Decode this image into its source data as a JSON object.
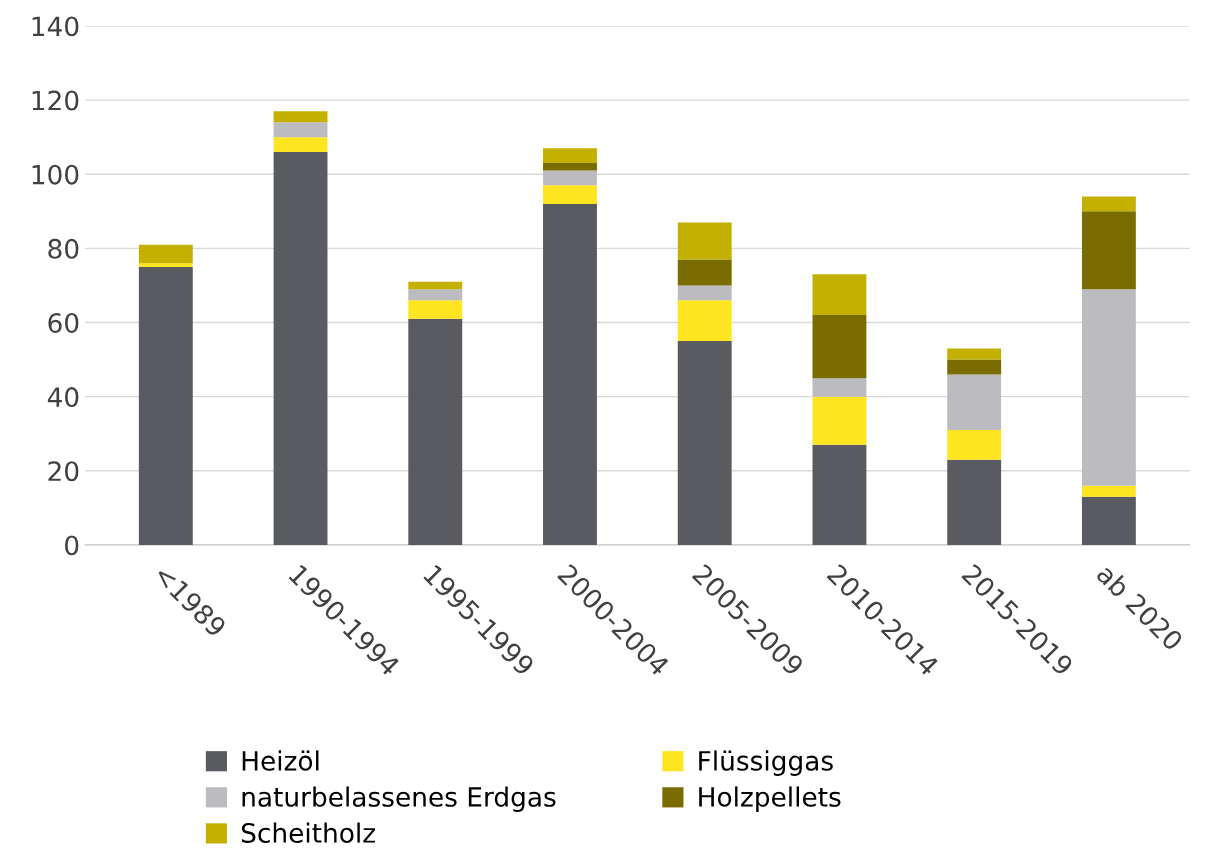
{
  "chart_data": {
    "type": "bar",
    "stacked": true,
    "categories": [
      "<1989",
      "1990-1994",
      "1995-1999",
      "2000-2004",
      "2005-2009",
      "2010-2014",
      "2015-2019",
      "ab 2020"
    ],
    "series": [
      {
        "name": "Heizöl",
        "color": "#5a5b60",
        "values": [
          75,
          106,
          61,
          92,
          55,
          27,
          23,
          13
        ]
      },
      {
        "name": "Flüssiggas",
        "color": "#ffe51f",
        "values": [
          1,
          4,
          5,
          5,
          11,
          13,
          8,
          3
        ]
      },
      {
        "name": "naturbelassenes Erdgas",
        "color": "#bcbcc0",
        "values": [
          0,
          4,
          3,
          4,
          4,
          5,
          15,
          53
        ]
      },
      {
        "name": "Holzpellets",
        "color": "#7a6c00",
        "values": [
          0,
          0,
          0,
          2,
          7,
          17,
          4,
          21
        ]
      },
      {
        "name": "Scheitholz",
        "color": "#c4b000",
        "values": [
          5,
          3,
          2,
          4,
          10,
          11,
          3,
          4
        ]
      }
    ],
    "ylim": [
      0,
      140
    ],
    "yticks": [
      0,
      20,
      40,
      60,
      80,
      100,
      120,
      140
    ],
    "grid": "y",
    "legend": "bottom"
  }
}
